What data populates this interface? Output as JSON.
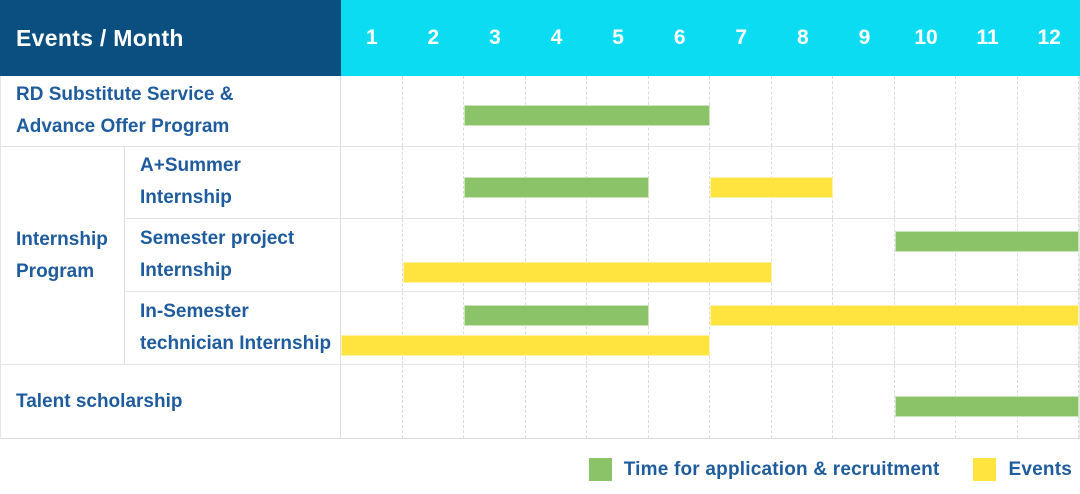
{
  "header": {
    "label": "Events / Month",
    "months": [
      "1",
      "2",
      "3",
      "4",
      "5",
      "6",
      "7",
      "8",
      "9",
      "10",
      "11",
      "12"
    ]
  },
  "colors": {
    "header_bg": "#0a4f7f",
    "months_bg": "#0cdcf2",
    "green": "#8bc468",
    "yellow": "#ffe33e",
    "label_text": "#1f5c9d",
    "grid_line": "#dcdcdc"
  },
  "groups": {
    "internship": {
      "label": "Internship\nProgram"
    }
  },
  "legend": {
    "items": [
      {
        "key": "green",
        "label": "Time for application & recruitment"
      },
      {
        "key": "yellow",
        "label": "Events"
      }
    ]
  },
  "chart_data": {
    "type": "bar",
    "orientation": "horizontal-gantt",
    "title": "Events / Month",
    "x_axis": {
      "label": "Month",
      "ticks": [
        1,
        2,
        3,
        4,
        5,
        6,
        7,
        8,
        9,
        10,
        11,
        12
      ],
      "range": [
        1,
        12
      ],
      "grid": "vertical-dashed"
    },
    "legend_position": "bottom-right",
    "series_legend": [
      {
        "name": "Time for application & recruitment",
        "color_key": "green"
      },
      {
        "name": "Events",
        "color_key": "yellow"
      }
    ],
    "rows": [
      {
        "label": "RD Substitute Service &\nAdvance Offer Program",
        "group": null,
        "bars": [
          {
            "series": "Time for application & recruitment",
            "start_month": 3,
            "end_month": 6,
            "lane": "single"
          }
        ]
      },
      {
        "label": "A+Summer\nInternship",
        "group": "Internship Program",
        "bars": [
          {
            "series": "Time for application & recruitment",
            "start_month": 3,
            "end_month": 5,
            "lane": "single"
          },
          {
            "series": "Events",
            "start_month": 7,
            "end_month": 8,
            "lane": "single"
          }
        ]
      },
      {
        "label": "Semester project\nInternship",
        "group": "Internship Program",
        "bars": [
          {
            "series": "Time for application & recruitment",
            "start_month": 10,
            "end_month": 12,
            "lane": "top"
          },
          {
            "series": "Events",
            "start_month": 2,
            "end_month": 7,
            "lane": "bottom"
          }
        ]
      },
      {
        "label": "In-Semester\ntechnician Internship",
        "group": "Internship Program",
        "bars": [
          {
            "series": "Time for application & recruitment",
            "start_month": 3,
            "end_month": 5,
            "lane": "top"
          },
          {
            "series": "Events",
            "start_month": 7,
            "end_month": 12,
            "lane": "top"
          },
          {
            "series": "Events",
            "start_month": 1,
            "end_month": 6,
            "lane": "bottom"
          }
        ]
      },
      {
        "label": "Talent scholarship",
        "group": null,
        "bars": [
          {
            "series": "Time for application & recruitment",
            "start_month": 10,
            "end_month": 12,
            "lane": "single"
          }
        ]
      }
    ]
  }
}
